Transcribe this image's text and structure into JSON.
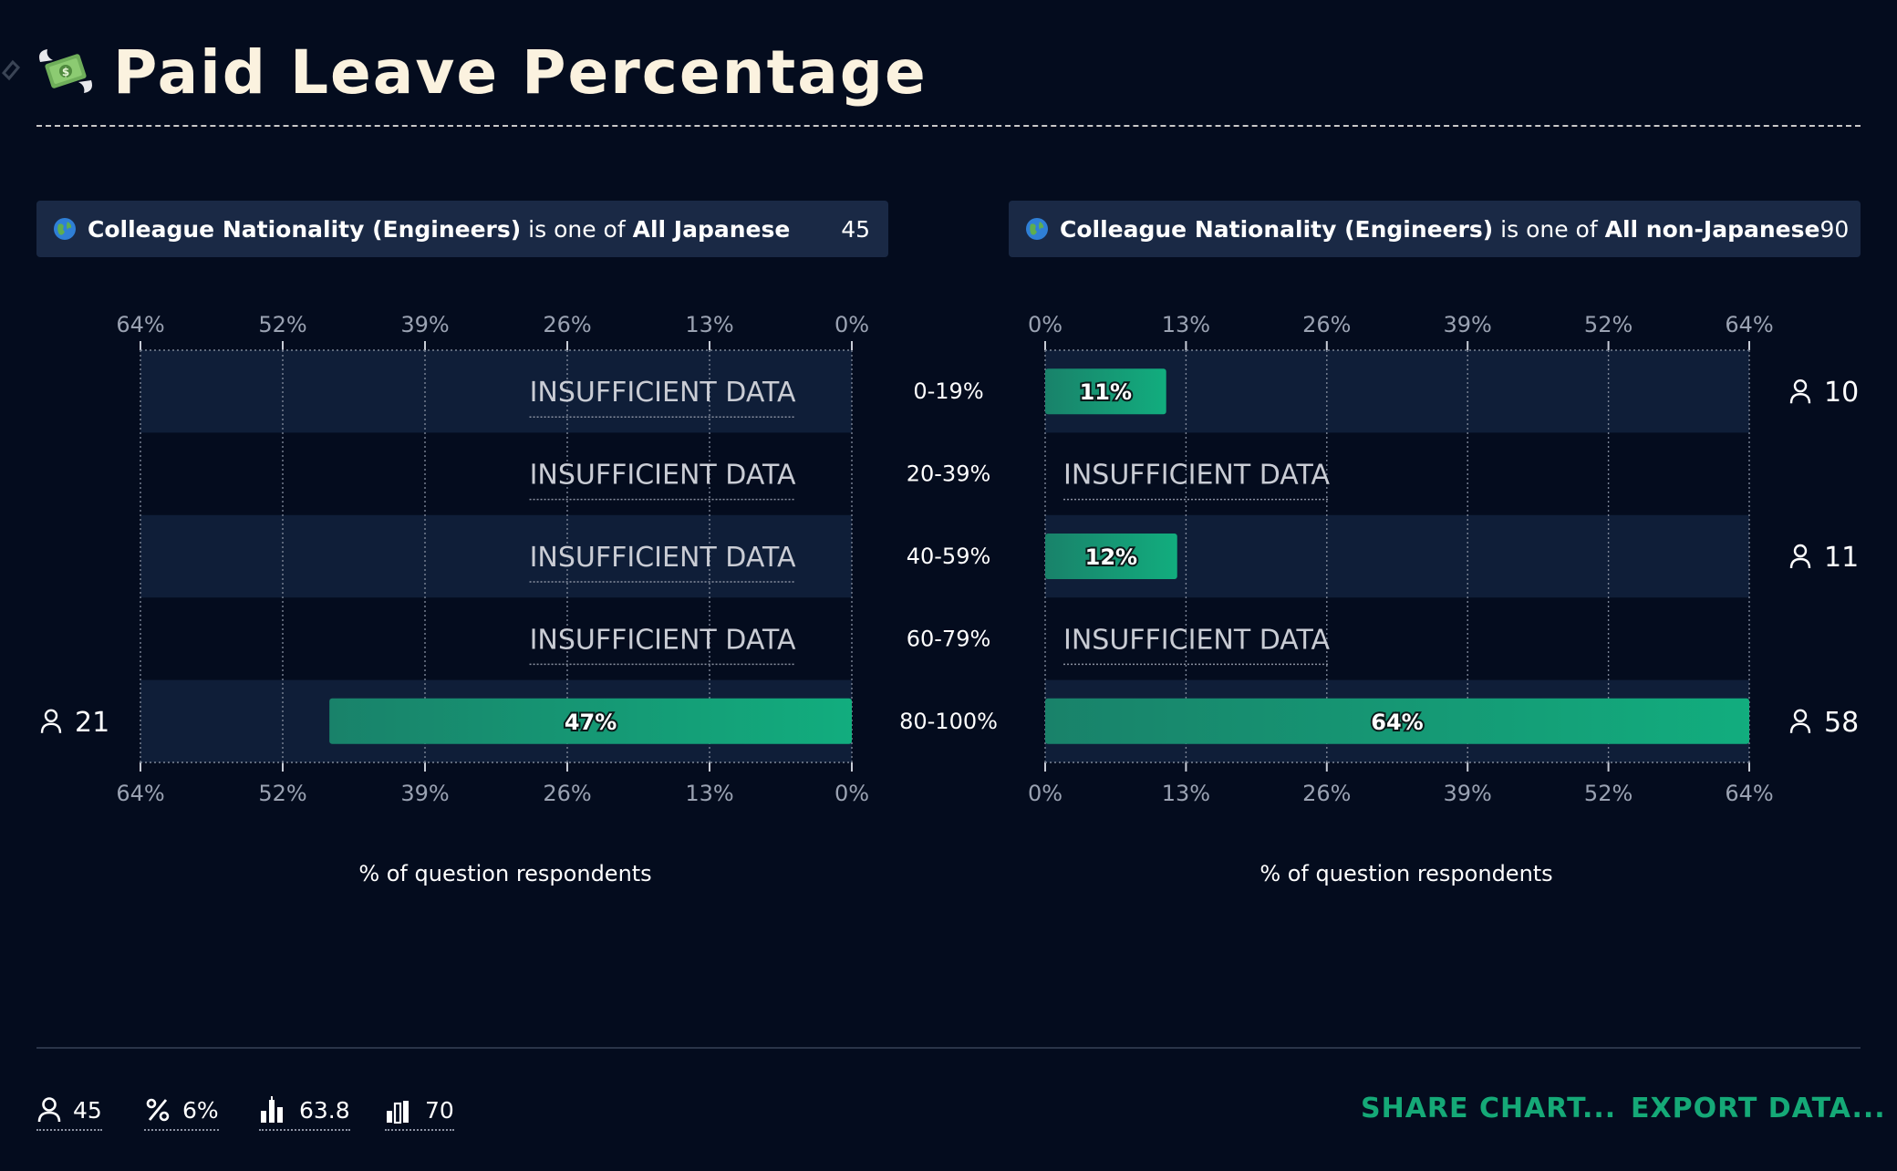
{
  "page": {
    "title": "Paid Leave Percentage",
    "title_icon": "money-with-wings-icon",
    "anchor_icon": "link-icon"
  },
  "filters": [
    {
      "icon": "globe-icon",
      "field": "Colleague Nationality (Engineers)",
      "operator": "is one of",
      "value": "All Japanese",
      "count": "45"
    },
    {
      "icon": "globe-icon",
      "field": "Colleague Nationality (Engineers)",
      "operator": "is one of",
      "value": "All non-Japanese",
      "count": "90"
    }
  ],
  "chart_data": {
    "type": "bar",
    "orientation": "horizontal-butterfly",
    "categories": [
      "0-19%",
      "20-39%",
      "40-59%",
      "60-79%",
      "80-100%"
    ],
    "insufficient_label": "INSUFFICIENT DATA",
    "xlabel": "% of question respondents",
    "xlim": [
      0,
      64
    ],
    "xticks": [
      "0%",
      "13%",
      "26%",
      "39%",
      "52%",
      "64%"
    ],
    "grid": true,
    "panels": [
      {
        "direction": "reversed",
        "values": [
          null,
          null,
          null,
          null,
          47
        ],
        "labels": [
          "",
          "",
          "",
          "",
          "47%"
        ],
        "respondents": [
          null,
          null,
          null,
          null,
          "21"
        ]
      },
      {
        "direction": "normal",
        "values": [
          11,
          null,
          12,
          null,
          64
        ],
        "labels": [
          "11%",
          "",
          "12%",
          "",
          "64%"
        ],
        "respondents": [
          "10",
          null,
          "11",
          null,
          "58"
        ]
      }
    ],
    "colors": {
      "bar_start": "#19826a",
      "bar_end": "#12ad7e",
      "band": "#0f1e38"
    }
  },
  "footer": {
    "stats": [
      {
        "icon": "person-icon",
        "value": "45"
      },
      {
        "icon": "percent-icon",
        "value": "6%"
      },
      {
        "icon": "median-bars-icon",
        "value": "63.8"
      },
      {
        "icon": "mean-bars-icon",
        "value": "70"
      }
    ],
    "share_label": "SHARE CHART...",
    "export_label": "EXPORT DATA..."
  }
}
